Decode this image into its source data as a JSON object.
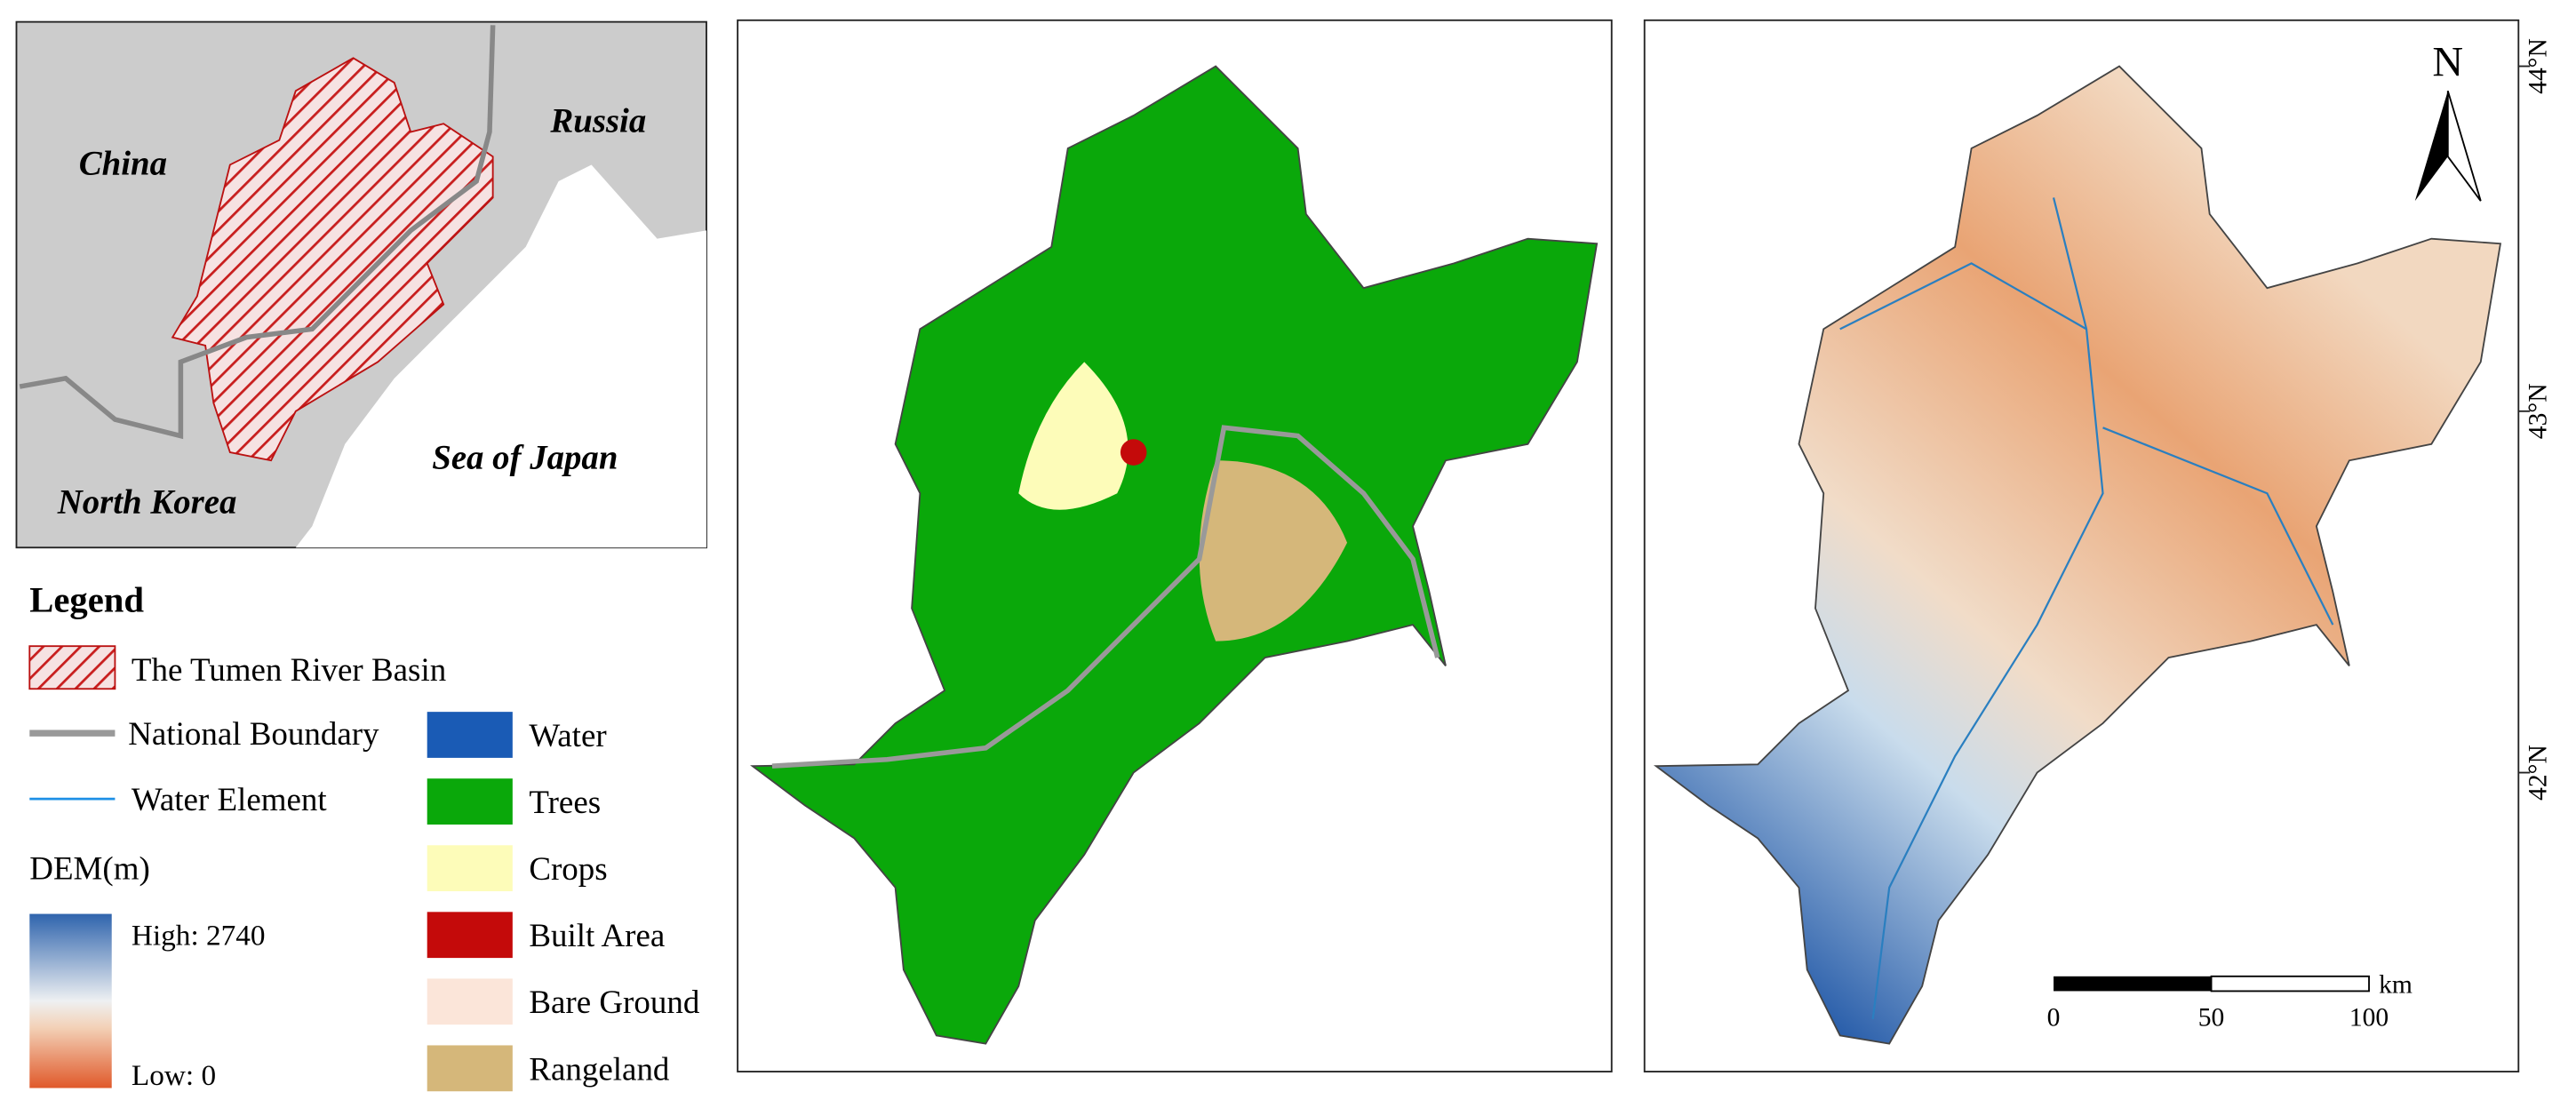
{
  "inset": {
    "labels": [
      "China",
      "Russia",
      "North Korea",
      "Sea of Japan"
    ]
  },
  "legend": {
    "title": "Legend",
    "items": [
      "The Tumen River Basin",
      "National Boundary",
      "Water Element"
    ]
  },
  "dem": {
    "title": "DEM(m)",
    "high": "High: 2740",
    "low": "Low: 0"
  },
  "land_cover": {
    "classes": [
      {
        "name": "Water",
        "color": "#1a5bb5"
      },
      {
        "name": "Trees",
        "color": "#0aa80a"
      },
      {
        "name": "Crops",
        "color": "#fdfcb9"
      },
      {
        "name": "Built Area",
        "color": "#c40a0a"
      },
      {
        "name": "Bare Ground",
        "color": "#fbe5d9"
      },
      {
        "name": "Rangeland",
        "color": "#d5b77a"
      }
    ]
  },
  "map": {
    "lat_labels": [
      "44°N",
      "43°N",
      "42°N"
    ]
  },
  "north_arrow": "N",
  "scale_bar": {
    "ticks": [
      "0",
      "50",
      "100"
    ],
    "unit": "km"
  }
}
